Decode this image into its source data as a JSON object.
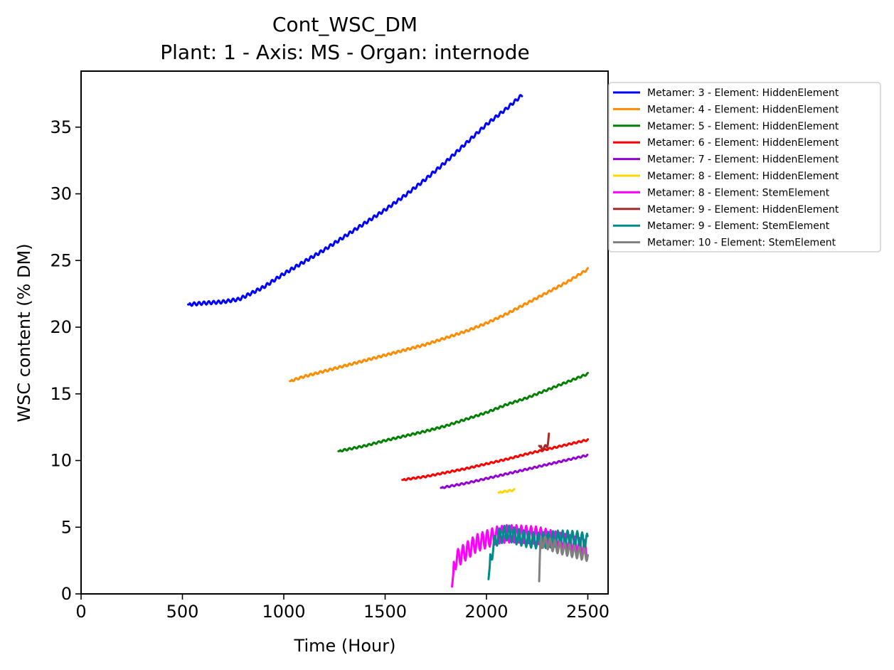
{
  "chart_data": {
    "type": "line",
    "title": "Cont_WSC_DM",
    "subtitle": "Plant: 1 - Axis: MS - Organ: internode",
    "xlabel": "Time (Hour)",
    "ylabel": "WSC content (% DM)",
    "xlim": [
      0,
      2600
    ],
    "ylim": [
      0,
      39.2
    ],
    "xticks": [
      0,
      500,
      1000,
      1500,
      2000,
      2500
    ],
    "yticks": [
      0,
      5,
      10,
      15,
      20,
      25,
      30,
      35
    ],
    "grid": false,
    "legend_position": "outside-top-right",
    "series": [
      {
        "name": "Metamer: 3 - Element: HiddenElement",
        "color": "#0000ff",
        "x": [
          528,
          600,
          700,
          780,
          900,
          1000,
          1100,
          1200,
          1300,
          1400,
          1500,
          1600,
          1700,
          1800,
          1900,
          2000,
          2100,
          2175
        ],
        "y": [
          21.7,
          21.8,
          21.9,
          22.1,
          23.0,
          24.0,
          24.9,
          25.8,
          26.8,
          27.8,
          28.8,
          29.9,
          31.1,
          32.4,
          33.8,
          35.2,
          36.4,
          37.4
        ],
        "wiggle": 0.12
      },
      {
        "name": "Metamer: 4 - Element: HiddenElement",
        "color": "#ff8c00",
        "x": [
          1030,
          1100,
          1200,
          1300,
          1400,
          1500,
          1600,
          1700,
          1800,
          1900,
          2000,
          2100,
          2200,
          2300,
          2400,
          2500
        ],
        "y": [
          15.95,
          16.3,
          16.7,
          17.1,
          17.5,
          17.9,
          18.3,
          18.7,
          19.2,
          19.7,
          20.3,
          21.0,
          21.8,
          22.6,
          23.4,
          24.35
        ],
        "wiggle": 0.08
      },
      {
        "name": "Metamer: 5 - Element: HiddenElement",
        "color": "#008000",
        "x": [
          1270,
          1400,
          1500,
          1600,
          1700,
          1800,
          1900,
          2000,
          2100,
          2200,
          2300,
          2400,
          2500
        ],
        "y": [
          10.7,
          11.1,
          11.5,
          11.85,
          12.2,
          12.6,
          13.1,
          13.6,
          14.2,
          14.7,
          15.3,
          15.9,
          16.5
        ],
        "wiggle": 0.07
      },
      {
        "name": "Metamer: 6 - Element: HiddenElement",
        "color": "#ff0000",
        "x": [
          1585,
          1700,
          1800,
          1900,
          2000,
          2100,
          2200,
          2300,
          2400,
          2500
        ],
        "y": [
          8.55,
          8.8,
          9.1,
          9.4,
          9.75,
          10.1,
          10.5,
          10.85,
          11.2,
          11.55
        ],
        "wiggle": 0.06
      },
      {
        "name": "Metamer: 7 - Element: HiddenElement",
        "color": "#9400d3",
        "x": [
          1775,
          1900,
          2000,
          2100,
          2200,
          2300,
          2400,
          2500
        ],
        "y": [
          7.95,
          8.3,
          8.65,
          9.0,
          9.35,
          9.7,
          10.05,
          10.4
        ],
        "wiggle": 0.06
      },
      {
        "name": "Metamer: 8 - Element: HiddenElement",
        "color": "#ffd700",
        "x": [
          2060,
          2100,
          2140
        ],
        "y": [
          7.6,
          7.7,
          7.8
        ],
        "wiggle": 0.06
      },
      {
        "name": "Metamer: 8 - Element: StemElement",
        "color": "#ff00ff",
        "x": [
          1830,
          1840,
          1850,
          1900,
          1950,
          2000,
          2050,
          2100,
          2150,
          2200,
          2250,
          2300,
          2350,
          2400,
          2450,
          2500
        ],
        "y": [
          0.55,
          2.1,
          2.6,
          3.2,
          3.8,
          4.1,
          4.4,
          4.5,
          4.5,
          4.45,
          4.4,
          4.2,
          4.0,
          3.8,
          3.6,
          3.3
        ],
        "wiggle": 0.65
      },
      {
        "name": "Metamer: 9 - Element: HiddenElement",
        "color": "#a52a2a",
        "x": [
          2260,
          2275,
          2290,
          2300,
          2305,
          2310
        ],
        "y": [
          11.1,
          10.9,
          11.0,
          11.1,
          11.6,
          12.3
        ],
        "wiggle": 0.15
      },
      {
        "name": "Metamer: 9 - Element: StemElement",
        "color": "#008b8b",
        "x": [
          2010,
          2020,
          2030,
          2050,
          2100,
          2150,
          2200,
          2250,
          2300,
          2350,
          2400,
          2450,
          2500
        ],
        "y": [
          1.1,
          2.7,
          3.3,
          4.2,
          4.6,
          4.3,
          4.1,
          4.0,
          4.05,
          4.15,
          4.15,
          4.1,
          3.9
        ],
        "wiggle": 0.6
      },
      {
        "name": "Metamer: 10 - Element: StemElement",
        "color": "#808080",
        "x": [
          2260,
          2265,
          2275,
          2300,
          2350,
          2400,
          2450,
          2500
        ],
        "y": [
          0.95,
          3.9,
          3.9,
          3.8,
          3.5,
          3.3,
          3.1,
          2.9
        ],
        "wiggle": 0.45
      }
    ]
  }
}
